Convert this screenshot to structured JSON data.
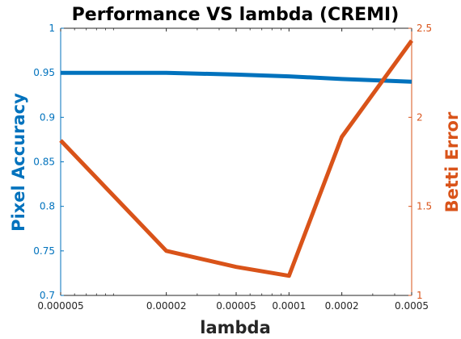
{
  "chart_data": {
    "type": "line",
    "title": "Performance VS lambda (CREMI)",
    "xlabel": "lambda",
    "x_scale": "log",
    "xlim": [
      5e-06,
      0.0005
    ],
    "x_ticks": [
      "0.000005",
      "0.00002",
      "0.00005",
      "0.0001",
      "0.0002",
      "0.0005"
    ],
    "x": [
      5e-06,
      2e-05,
      5e-05,
      0.0001,
      0.0002,
      0.0005
    ],
    "left_axis": {
      "label": "Pixel Accuracy",
      "color": "#0072BD",
      "ylim": [
        0.7,
        1
      ],
      "ticks": [
        "0.7",
        "0.75",
        "0.8",
        "0.85",
        "0.9",
        "0.95",
        "1"
      ]
    },
    "right_axis": {
      "label": "Betti Error",
      "color": "#D95319",
      "ylim": [
        1,
        2.5
      ],
      "ticks": [
        "1",
        "1.5",
        "2",
        "2.5"
      ]
    },
    "series": [
      {
        "axis": "left",
        "color": "#0072BD",
        "values": [
          0.95,
          0.95,
          0.948,
          0.946,
          0.943,
          0.94
        ]
      },
      {
        "axis": "right",
        "color": "#D95319",
        "values": [
          1.87,
          1.25,
          1.16,
          1.11,
          1.89,
          2.43
        ]
      }
    ],
    "grid": false,
    "legend": "none"
  }
}
